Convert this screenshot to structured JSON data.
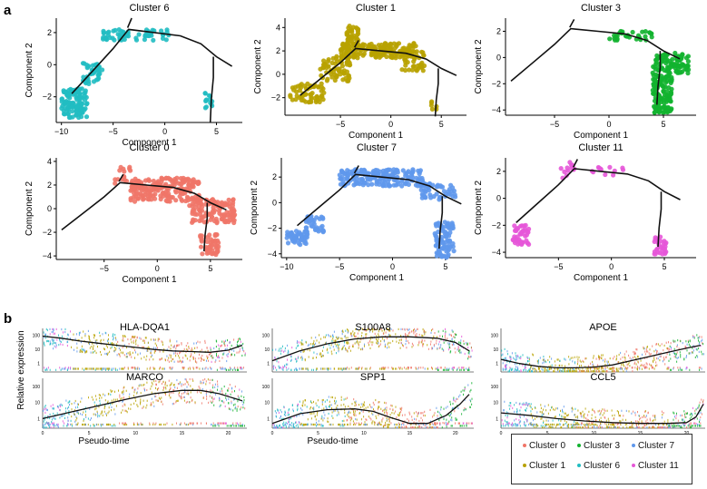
{
  "figure": {
    "panel_a_label": "a",
    "panel_b_label": "b"
  },
  "colors": {
    "cluster_0": "#f07568",
    "cluster_1": "#b8a200",
    "cluster_3": "#12b22f",
    "cluster_6": "#21bdc2",
    "cluster_7": "#5f98ec",
    "cluster_11": "#e657d8",
    "trajectory": "#111111"
  },
  "chart_data": [
    {
      "type": "scatter",
      "panel": "a",
      "title": "Cluster 6",
      "xlabel": "Component 1",
      "ylabel": "Component 2",
      "xlim": [
        -10.5,
        7.5
      ],
      "ylim": [
        -3.6,
        2.9
      ],
      "xticks": [
        -10,
        -5,
        0,
        5
      ],
      "yticks": [
        -2,
        0,
        2
      ],
      "xtick_labels": [
        "−10",
        "−5",
        "0",
        "5"
      ],
      "ytick_labels": [
        "−2",
        "0",
        "2"
      ],
      "color_key": "cluster_6",
      "clusters": [
        {
          "x": [
            -10,
            -7.5
          ],
          "y": [
            -3.3,
            -1.5
          ],
          "n": 120
        },
        {
          "x": [
            -8,
            -6
          ],
          "y": [
            -1.2,
            0.1
          ],
          "n": 40
        },
        {
          "x": [
            -6,
            -3.5
          ],
          "y": [
            1.5,
            2.2
          ],
          "n": 35
        },
        {
          "x": [
            -3,
            0.5
          ],
          "y": [
            1.5,
            2.2
          ],
          "n": 25
        },
        {
          "x": [
            3.8,
            4.6
          ],
          "y": [
            -2.7,
            -1.6
          ],
          "n": 14
        }
      ]
    },
    {
      "type": "scatter",
      "panel": "a",
      "title": "Cluster 1",
      "xlabel": "Component 1",
      "ylabel": "Component 2",
      "xlim": [
        -10.5,
        7.5
      ],
      "ylim": [
        -3.5,
        4.8
      ],
      "xticks": [
        -5,
        0,
        5
      ],
      "yticks": [
        -2,
        0,
        2,
        4
      ],
      "xtick_labels": [
        "−5",
        "0",
        "5"
      ],
      "ytick_labels": [
        "−2",
        "0",
        "2",
        "4"
      ],
      "color_key": "cluster_1",
      "clusters": [
        {
          "x": [
            -10,
            -6.5
          ],
          "y": [
            -2.4,
            -0.8
          ],
          "n": 60
        },
        {
          "x": [
            -7,
            -4
          ],
          "y": [
            -0.6,
            1.6
          ],
          "n": 70
        },
        {
          "x": [
            -5,
            2.5
          ],
          "y": [
            1.4,
            2.7
          ],
          "n": 180
        },
        {
          "x": [
            -4.4,
            -3.2
          ],
          "y": [
            2.5,
            4.2
          ],
          "n": 40
        },
        {
          "x": [
            1,
            3.5
          ],
          "y": [
            0.3,
            2
          ],
          "n": 40
        },
        {
          "x": [
            4,
            4.8
          ],
          "y": [
            -3,
            -2.3
          ],
          "n": 6
        }
      ]
    },
    {
      "type": "scatter",
      "panel": "a",
      "title": "Cluster 3",
      "xlabel": "Component 1",
      "ylabel": "Component 2",
      "xlim": [
        -9.5,
        8
      ],
      "ylim": [
        -4.4,
        3
      ],
      "xticks": [
        -5,
        0,
        5
      ],
      "yticks": [
        -4,
        -2,
        0,
        2
      ],
      "xtick_labels": [
        "−5",
        "0",
        "5"
      ],
      "ytick_labels": [
        "−4",
        "−2",
        "0",
        "2"
      ],
      "color_key": "cluster_3",
      "clusters": [
        {
          "x": [
            0,
            4
          ],
          "y": [
            1.3,
            2
          ],
          "n": 30
        },
        {
          "x": [
            4,
            7.3
          ],
          "y": [
            -1.2,
            0.4
          ],
          "n": 100
        },
        {
          "x": [
            4,
            5.8
          ],
          "y": [
            -4.2,
            -1.3
          ],
          "n": 130
        }
      ]
    },
    {
      "type": "scatter",
      "panel": "a",
      "title": "Cluster 0",
      "xlabel": "Component 1",
      "ylabel": "Component 2",
      "xlim": [
        -9.5,
        8
      ],
      "ylim": [
        -4.3,
        4.3
      ],
      "xticks": [
        -5,
        0,
        5
      ],
      "yticks": [
        -4,
        -2,
        0,
        2,
        4
      ],
      "xtick_labels": [
        "−5",
        "0",
        "5"
      ],
      "ytick_labels": [
        "−4",
        "−2",
        "0",
        "2",
        "4"
      ],
      "color_key": "cluster_0",
      "clusters": [
        {
          "x": [
            -4,
            -2.5
          ],
          "y": [
            2,
            3.6
          ],
          "n": 15
        },
        {
          "x": [
            -2.5,
            4
          ],
          "y": [
            0.6,
            2.6
          ],
          "n": 200
        },
        {
          "x": [
            3,
            7.3
          ],
          "y": [
            -1.2,
            0.8
          ],
          "n": 120
        },
        {
          "x": [
            4,
            5.8
          ],
          "y": [
            -4,
            -2
          ],
          "n": 50
        }
      ]
    },
    {
      "type": "scatter",
      "panel": "a",
      "title": "Cluster 7",
      "xlabel": "Component 1",
      "ylabel": "Component 2",
      "xlim": [
        -10.5,
        7.5
      ],
      "ylim": [
        -4.3,
        3.5
      ],
      "xticks": [
        -10,
        -5,
        0,
        5
      ],
      "yticks": [
        -4,
        -2,
        0,
        2
      ],
      "xtick_labels": [
        "−10",
        "−5",
        "0",
        "5"
      ],
      "ytick_labels": [
        "−4",
        "−2",
        "0",
        "2"
      ],
      "color_key": "cluster_7",
      "clusters": [
        {
          "x": [
            -10,
            -8
          ],
          "y": [
            -3.3,
            -2.2
          ],
          "n": 50
        },
        {
          "x": [
            -8.2,
            -6.5
          ],
          "y": [
            -2.3,
            -1
          ],
          "n": 35
        },
        {
          "x": [
            -5,
            3
          ],
          "y": [
            1.3,
            2.6
          ],
          "n": 180
        },
        {
          "x": [
            2.5,
            6
          ],
          "y": [
            0.2,
            1.5
          ],
          "n": 50
        },
        {
          "x": [
            4,
            5.8
          ],
          "y": [
            -4.3,
            -1.5
          ],
          "n": 90
        }
      ]
    },
    {
      "type": "scatter",
      "panel": "a",
      "title": "Cluster 11",
      "xlabel": "Component 1",
      "ylabel": "Component 2",
      "xlim": [
        -10,
        8
      ],
      "ylim": [
        -4.4,
        3
      ],
      "xticks": [
        -5,
        0,
        5
      ],
      "yticks": [
        -4,
        -2,
        0,
        2
      ],
      "xtick_labels": [
        "−5",
        "0",
        "5"
      ],
      "ytick_labels": [
        "−4",
        "−2",
        "0",
        "2"
      ],
      "color_key": "cluster_11",
      "clusters": [
        {
          "x": [
            -9.3,
            -7.8
          ],
          "y": [
            -3.5,
            -2
          ],
          "n": 45
        },
        {
          "x": [
            -5,
            -3.5
          ],
          "y": [
            1.5,
            2.7
          ],
          "n": 12
        },
        {
          "x": [
            -2,
            1.5
          ],
          "y": [
            1.6,
            2.3
          ],
          "n": 12
        },
        {
          "x": [
            4,
            5.2
          ],
          "y": [
            -4.2,
            -2.8
          ],
          "n": 30
        }
      ]
    },
    {
      "type": "scatter",
      "panel": "b",
      "title": "HLA-DQA1",
      "xlim": [
        0,
        22
      ],
      "ylim_log10": [
        -0.6,
        2.5
      ],
      "xticks": [
        0,
        5,
        10,
        15,
        20
      ],
      "xtick_labels": [
        "0",
        "5",
        "10",
        "15",
        "20"
      ],
      "ytick_labels": [
        "1",
        "10",
        "100"
      ],
      "trend_x": [
        0,
        2,
        4,
        6,
        8,
        10,
        12,
        14,
        16,
        18,
        20,
        21.5
      ],
      "trend_log10": [
        1.95,
        1.8,
        1.6,
        1.45,
        1.3,
        1.15,
        1.0,
        0.9,
        0.85,
        0.8,
        0.95,
        1.3
      ],
      "show_xlabel": false,
      "show_xticks": false
    },
    {
      "type": "scatter",
      "panel": "b",
      "title": "S100A8",
      "xlim": [
        0,
        22
      ],
      "ylim_log10": [
        -0.6,
        2.5
      ],
      "xticks": [
        0,
        5,
        10,
        15,
        20
      ],
      "xtick_labels": [
        "0",
        "5",
        "10",
        "15",
        "20"
      ],
      "ytick_labels": [
        "1",
        "10",
        "100"
      ],
      "trend_x": [
        0,
        3,
        6,
        9,
        12,
        15,
        18,
        20,
        21.5
      ],
      "trend_log10": [
        0.2,
        0.9,
        1.4,
        1.75,
        1.9,
        1.9,
        1.8,
        1.5,
        0.9
      ],
      "show_xlabel": false,
      "show_xticks": false
    },
    {
      "type": "scatter",
      "panel": "b",
      "title": "APOE",
      "xlim": [
        0,
        22
      ],
      "ylim_log10": [
        -0.6,
        2.5
      ],
      "xticks": [
        0,
        5,
        10,
        15,
        20
      ],
      "xtick_labels": [
        "0",
        "5",
        "10",
        "15",
        "20"
      ],
      "ytick_labels": [
        "1",
        "10",
        "100"
      ],
      "trend_x": [
        0,
        2,
        4,
        6,
        8,
        10,
        12,
        14,
        16,
        18,
        20,
        21.5
      ],
      "trend_log10": [
        0.3,
        0.0,
        -0.2,
        -0.3,
        -0.3,
        -0.25,
        -0.1,
        0.2,
        0.5,
        0.8,
        1.1,
        1.3
      ],
      "show_xlabel": false,
      "show_xticks": false
    },
    {
      "type": "scatter",
      "panel": "b",
      "title": "MARCO",
      "xlim": [
        0,
        22
      ],
      "ylim_log10": [
        -0.6,
        2.5
      ],
      "xticks": [
        0,
        5,
        10,
        15,
        20
      ],
      "xtick_labels": [
        "0",
        "5",
        "10",
        "15",
        "20"
      ],
      "ytick_labels": [
        "1",
        "10",
        "100"
      ],
      "trend_x": [
        0,
        3,
        6,
        9,
        12,
        15,
        17,
        19,
        21.5
      ],
      "trend_log10": [
        0.0,
        0.4,
        0.8,
        1.2,
        1.55,
        1.75,
        1.75,
        1.55,
        1.1
      ],
      "show_xlabel": true,
      "show_xticks": true,
      "xlabel": "Pseudo-time"
    },
    {
      "type": "scatter",
      "panel": "b",
      "title": "SPP1",
      "xlim": [
        0,
        22
      ],
      "ylim_log10": [
        -0.6,
        2.5
      ],
      "xticks": [
        0,
        5,
        10,
        15,
        20
      ],
      "xtick_labels": [
        "0",
        "5",
        "10",
        "15",
        "20"
      ],
      "ytick_labels": [
        "1",
        "10",
        "100"
      ],
      "trend_x": [
        0,
        3,
        6,
        9,
        11,
        13,
        15,
        17,
        19,
        20.5,
        21.5
      ],
      "trend_log10": [
        -0.3,
        0.3,
        0.55,
        0.6,
        0.45,
        0.05,
        -0.3,
        -0.3,
        0.2,
        0.9,
        1.5
      ],
      "show_xlabel": true,
      "show_xticks": true,
      "xlabel": "Pseudo-time"
    },
    {
      "type": "scatter",
      "panel": "b",
      "title": "CCL5",
      "xlim": [
        0,
        22
      ],
      "ylim_log10": [
        -0.6,
        2.5
      ],
      "xticks": [
        0,
        5,
        10,
        15,
        20
      ],
      "xtick_labels": [
        "0",
        "5",
        "10",
        "15",
        "20"
      ],
      "ytick_labels": [
        "1",
        "10",
        "100"
      ],
      "trend_x": [
        0,
        3,
        6,
        9,
        12,
        15,
        18,
        20,
        21,
        21.8
      ],
      "trend_log10": [
        0.35,
        0.2,
        0.0,
        -0.15,
        -0.25,
        -0.3,
        -0.3,
        -0.25,
        0.1,
        0.9
      ],
      "show_xlabel": true,
      "show_xticks": true,
      "xlabel": "Pseudo-time"
    }
  ],
  "panel_b_ylabel": "Relative expression",
  "legend": {
    "items": [
      {
        "label": "Cluster 0",
        "color_key": "cluster_0"
      },
      {
        "label": "Cluster 3",
        "color_key": "cluster_3"
      },
      {
        "label": "Cluster 7",
        "color_key": "cluster_7"
      },
      {
        "label": "Cluster 1",
        "color_key": "cluster_1"
      },
      {
        "label": "Cluster 6",
        "color_key": "cluster_6"
      },
      {
        "label": "Cluster 11",
        "color_key": "cluster_11"
      }
    ]
  }
}
